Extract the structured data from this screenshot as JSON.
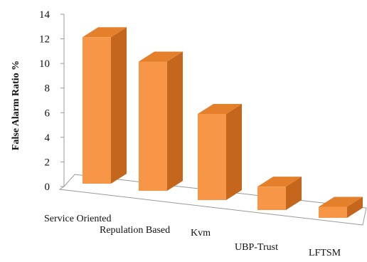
{
  "chart_data": {
    "type": "bar",
    "style": "3d-column",
    "categories": [
      "Service Oriented",
      "Repulation Based",
      "Kvm",
      "UBP-Trust",
      "LFTSM"
    ],
    "series": [
      {
        "values": [
          11.9,
          10.5,
          7.0,
          1.9,
          0.9
        ]
      }
    ],
    "title": "",
    "xlabel": "",
    "ylabel": "False Alarm Ratio %",
    "ylim": [
      0,
      14
    ],
    "yticks": [
      0,
      2,
      4,
      6,
      8,
      10,
      12,
      14
    ],
    "grid": false,
    "legend": "none",
    "colors": {
      "front": "#F79646",
      "side": "#C4671C",
      "top": "#E4802C"
    }
  }
}
